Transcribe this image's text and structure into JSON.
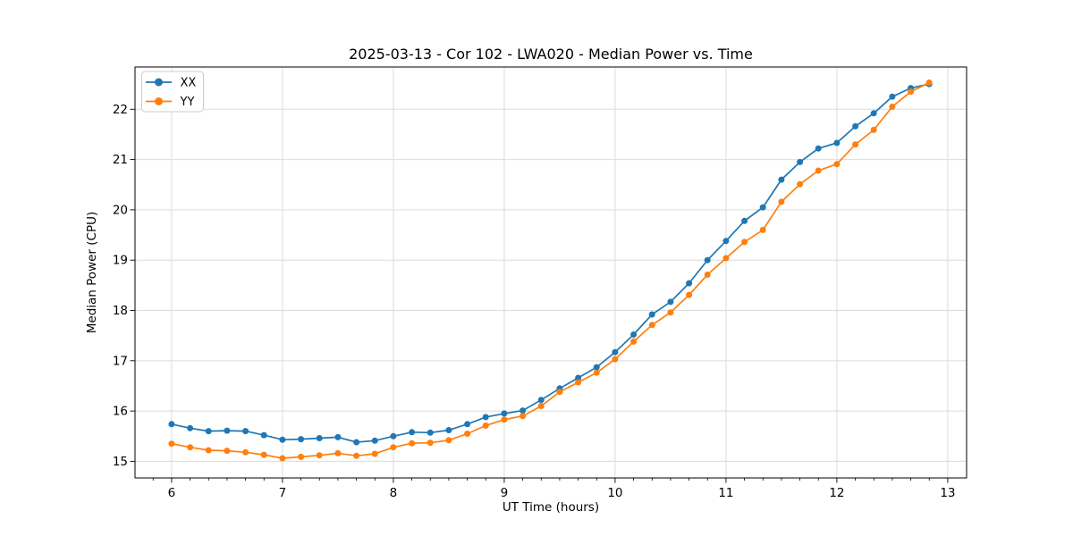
{
  "figure": {
    "title": "2025-03-13 - Cor 102 - LWA020 - Median Power vs. Time"
  },
  "chart_data": {
    "type": "line",
    "title": "2025-03-13 - Cor 102 - LWA020 - Median Power vs. Time",
    "xlabel": "UT Time (hours)",
    "ylabel": "Median Power (CPU)",
    "xlim": [
      5.67,
      13.17
    ],
    "ylim": [
      14.67,
      22.84
    ],
    "x_ticks": [
      6,
      7,
      8,
      9,
      10,
      11,
      12,
      13
    ],
    "y_ticks": [
      15,
      16,
      17,
      18,
      19,
      20,
      21,
      22
    ],
    "x_minor_step": 0.166667,
    "grid": "major",
    "grid_color": "#dcdcdc",
    "legend_position": "upper left",
    "marker": "o",
    "x": [
      6.0,
      6.167,
      6.333,
      6.5,
      6.667,
      6.833,
      7.0,
      7.167,
      7.333,
      7.5,
      7.667,
      7.833,
      8.0,
      8.167,
      8.333,
      8.5,
      8.667,
      8.833,
      9.0,
      9.167,
      9.333,
      9.5,
      9.667,
      9.833,
      10.0,
      10.167,
      10.333,
      10.5,
      10.667,
      10.833,
      11.0,
      11.167,
      11.333,
      11.5,
      11.667,
      11.833,
      12.0,
      12.167,
      12.333,
      12.5,
      12.667,
      12.833
    ],
    "series": [
      {
        "name": "XX",
        "color": "#1f77b4",
        "values": [
          15.74,
          15.66,
          15.6,
          15.61,
          15.6,
          15.52,
          15.43,
          15.44,
          15.46,
          15.48,
          15.38,
          15.41,
          15.5,
          15.58,
          15.57,
          15.62,
          15.74,
          15.88,
          15.95,
          16.01,
          16.22,
          16.45,
          16.66,
          16.87,
          17.17,
          17.52,
          17.92,
          18.17,
          18.54,
          19.0,
          19.38,
          19.78,
          20.05,
          20.6,
          20.95,
          21.22,
          21.33,
          21.66,
          21.92,
          22.25,
          22.42,
          22.5
        ]
      },
      {
        "name": "YY",
        "color": "#ff7f0e",
        "values": [
          15.35,
          15.28,
          15.22,
          15.21,
          15.18,
          15.13,
          15.06,
          15.09,
          15.12,
          15.16,
          15.11,
          15.15,
          15.28,
          15.36,
          15.37,
          15.42,
          15.55,
          15.71,
          15.83,
          15.9,
          16.1,
          16.38,
          16.57,
          16.76,
          17.03,
          17.38,
          17.71,
          17.96,
          18.31,
          18.71,
          19.04,
          19.36,
          19.6,
          20.16,
          20.51,
          20.78,
          20.91,
          21.3,
          21.59,
          22.05,
          22.35,
          22.53
        ]
      }
    ]
  }
}
